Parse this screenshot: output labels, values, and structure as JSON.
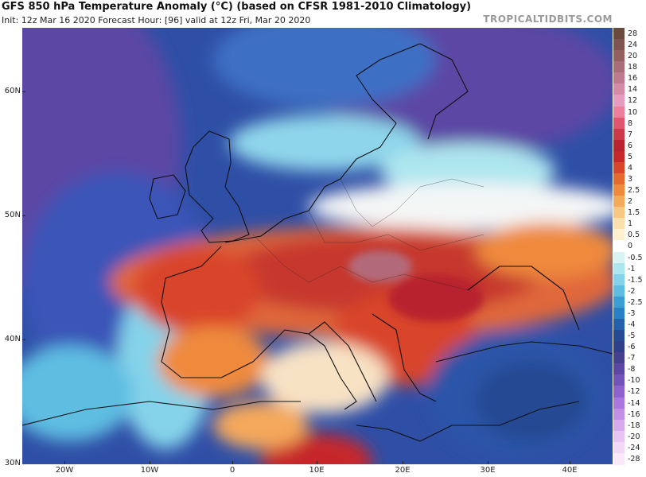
{
  "header": {
    "title": "GFS 850 hPa Temperature Anomaly (°C) (based on CFSR 1981-2010 Climatology)",
    "subtitle": "Init: 12z Mar 16 2020   Forecast Hour: [96]   valid at 12z Fri, Mar 20 2020",
    "source": "TROPICALTIDBITS.COM"
  },
  "map": {
    "lat_labels": [
      "60N",
      "50N",
      "40N",
      "30N"
    ],
    "lon_labels": [
      "20W",
      "10W",
      "0",
      "10E",
      "20E",
      "30E",
      "40E"
    ],
    "lat_values": [
      60,
      50,
      40,
      30
    ],
    "lon_values": [
      -20,
      -10,
      0,
      10,
      20,
      30,
      40
    ]
  },
  "colorbar": {
    "labels": [
      "28",
      "24",
      "20",
      "18",
      "16",
      "14",
      "12",
      "10",
      "8",
      "7",
      "6",
      "5",
      "4",
      "3",
      "2.5",
      "2",
      "1.5",
      "1",
      "0.5",
      "0",
      "-0.5",
      "-1",
      "-1.5",
      "-2",
      "-2.5",
      "-3",
      "-4",
      "-5",
      "-6",
      "-7",
      "-8",
      "-10",
      "-12",
      "-14",
      "-16",
      "-18",
      "-20",
      "-24",
      "-28"
    ],
    "colors": [
      "#6b4a3e",
      "#7e5350",
      "#93605f",
      "#a86d76",
      "#bf7b8e",
      "#d58aa6",
      "#e69bbf",
      "#ee7f9c",
      "#e0566e",
      "#cc3a49",
      "#b8232d",
      "#c6272a",
      "#d9452a",
      "#e66a2f",
      "#ef8a3c",
      "#f5a95b",
      "#f8c883",
      "#fbe0ad",
      "#fdf0cf",
      "#ffffff",
      "#d9f3f5",
      "#aee6ef",
      "#85d3ea",
      "#5fbde2",
      "#3c9fd4",
      "#2a80c4",
      "#2560aa",
      "#254a93",
      "#2f3f8a",
      "#44408f",
      "#5b46a4",
      "#7352ba",
      "#8d62cd",
      "#a977de",
      "#c18fe6",
      "#d7aaee",
      "#e8c4f3",
      "#f2d8f7",
      "#fbe9fb"
    ]
  }
}
